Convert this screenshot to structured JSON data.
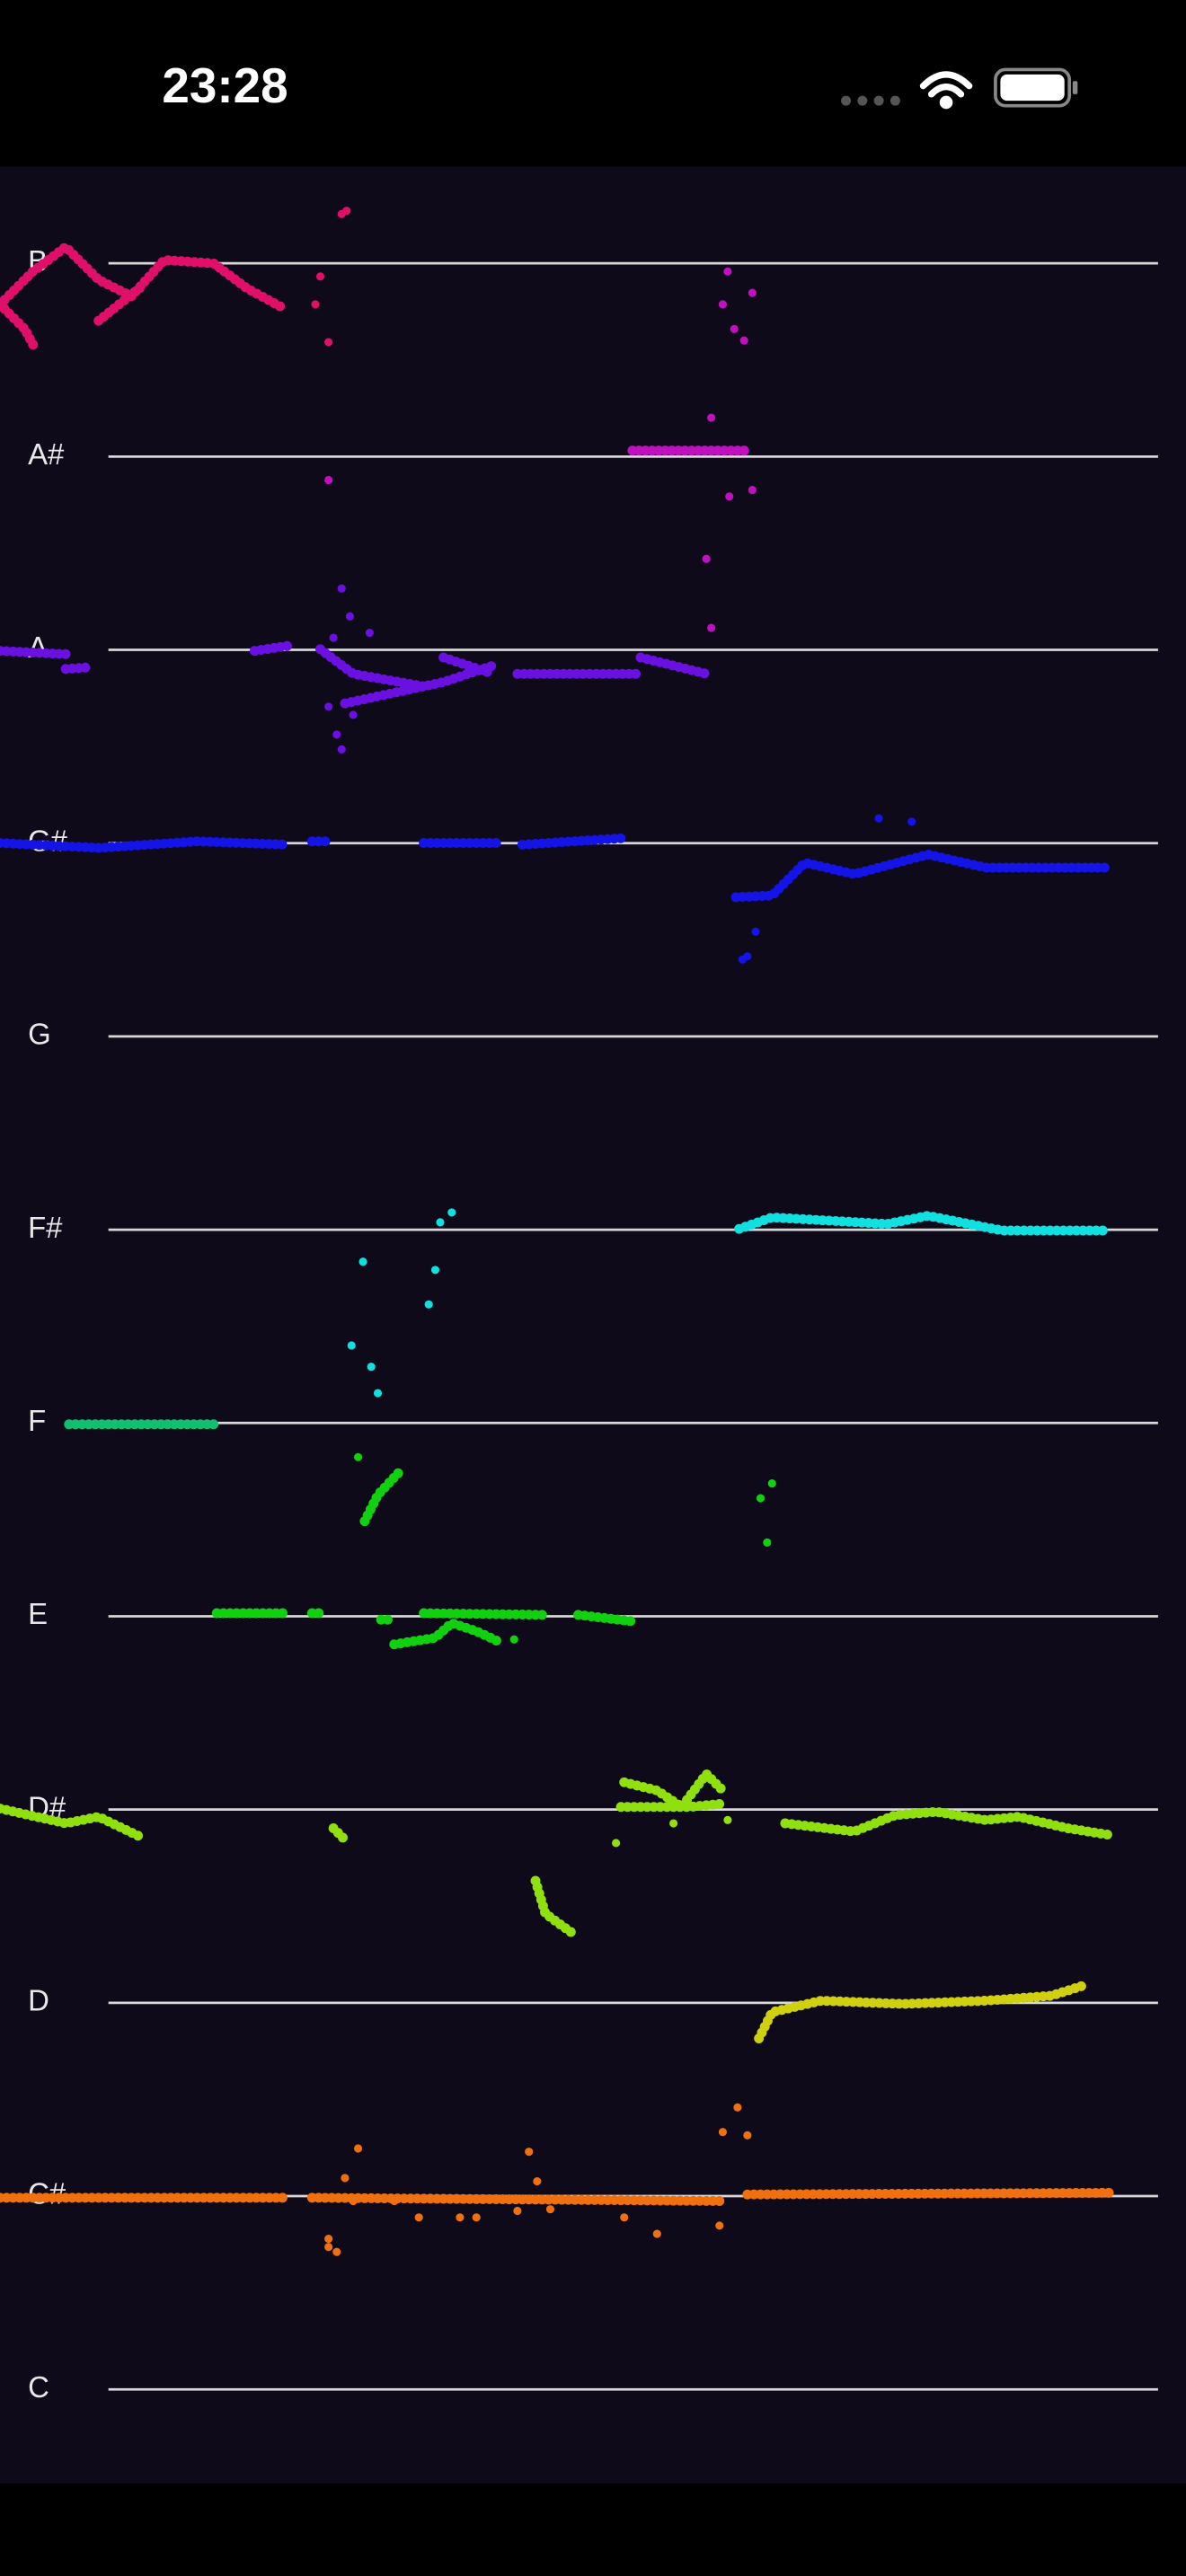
{
  "status_bar": {
    "time": "23:28"
  },
  "staff": {
    "notes": [
      "B",
      "A#",
      "A",
      "G#",
      "G",
      "F#",
      "F",
      "E",
      "D#",
      "D",
      "C#",
      "C"
    ]
  }
}
